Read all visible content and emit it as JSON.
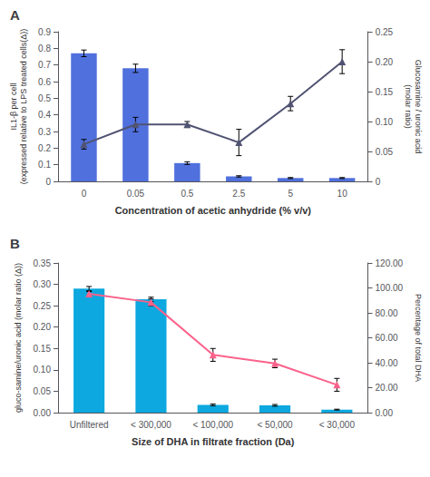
{
  "chart_data": [
    {
      "type": "bar",
      "title": "A",
      "categories": [
        "0",
        "0.05",
        "0.5",
        "2.5",
        "5",
        "10"
      ],
      "xlabel": "Concentration of acetic anhydride (% v/v)",
      "ylabel": "IL1-β per cell\n(expressed relative to LPS treated cells(Δ))",
      "y2label": "Glucosamine / uronic acid\n(molar ratio)",
      "series": [
        {
          "type": "bar",
          "values": [
            0.77,
            0.68,
            0.11,
            0.03,
            0.02,
            0.02
          ],
          "errors": [
            0.02,
            0.025,
            0.008,
            0.004,
            0.003,
            0.003
          ]
        },
        {
          "type": "line",
          "axis": "y2",
          "marker": "triangle",
          "values": [
            0.062,
            0.095,
            0.095,
            0.065,
            0.13,
            0.2
          ],
          "errors": [
            0.008,
            0.012,
            0.005,
            0.022,
            0.012,
            0.02
          ]
        }
      ],
      "ylim": [
        0,
        0.9
      ],
      "yticks": [
        0,
        0.1,
        0.2,
        0.3,
        0.4,
        0.5,
        0.6,
        0.7,
        0.8,
        0.9
      ],
      "y2lim": [
        0,
        0.25
      ],
      "y2ticks": [
        0,
        0.05,
        {
          "value": 0.1,
          "label": "0.10"
        },
        0.15,
        {
          "value": 0.2,
          "label": "0.20"
        },
        0.25
      ],
      "grid": false
    },
    {
      "type": "bar",
      "title": "B",
      "categories": [
        "Unfiltered",
        "< 300,000",
        "< 100,000",
        "< 50,000",
        "< 30,000"
      ],
      "xlabel": "Size of DHA in filtrate fraction (Da)",
      "ylabel": "gluco-samine/uronic acid (molar ratio (Δ))",
      "y2label": "Percentage of total DHA",
      "series": [
        {
          "type": "bar",
          "values": [
            0.29,
            0.265,
            0.018,
            0.017,
            0.007
          ],
          "errors": [
            0.005,
            0.005,
            0.002,
            0.002,
            0.001
          ]
        },
        {
          "type": "line",
          "marker": "triangle",
          "values": [
            0.278,
            0.258,
            0.135,
            0.115,
            0.065
          ],
          "errors": [
            0.005,
            0.008,
            0.015,
            0.01,
            0.015
          ]
        }
      ],
      "ylim": [
        0,
        0.35
      ],
      "yticks": [
        {
          "value": 0,
          "label": "0.00"
        },
        0.05,
        {
          "value": 0.1,
          "label": "0.10"
        },
        0.15,
        {
          "value": 0.2,
          "label": "0.20"
        },
        0.25,
        {
          "value": 0.3,
          "label": "0.30"
        },
        0.35
      ],
      "y2lim": [
        0,
        120
      ],
      "y2ticks": [
        {
          "value": 0,
          "label": "0.00"
        },
        {
          "value": 20,
          "label": "20.00"
        },
        {
          "value": 40,
          "label": "40.00"
        },
        {
          "value": 60,
          "label": "60.00"
        },
        {
          "value": 80,
          "label": "80.00"
        },
        {
          "value": 100,
          "label": "100.00"
        },
        {
          "value": 120,
          "label": "120.00"
        }
      ],
      "grid": false
    }
  ]
}
